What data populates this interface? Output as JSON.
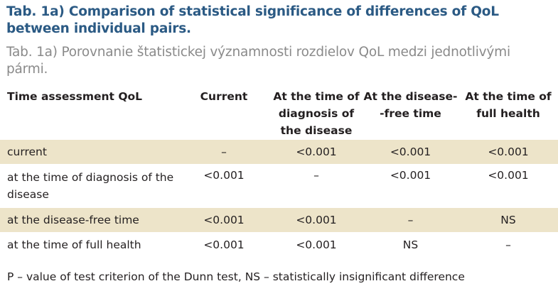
{
  "title_en": "Tab. 1a) Comparison of statistical significance of differences of QoL between individual pairs.",
  "title_sk": "Tab. 1a) Porovnanie štatistickej významnosti rozdielov QoL medzi jednotlivými pármi.",
  "table": {
    "headers": [
      "Time assessment QoL",
      "Current",
      "At the time of diagnosis of the disease",
      "At the disease--free time",
      "At the time of full health"
    ],
    "rows": [
      {
        "label": "current",
        "values": [
          "–",
          "<0.001",
          "<0.001",
          "<0.001"
        ]
      },
      {
        "label": "at the time of diagnosis of the disease",
        "values": [
          "<0.001",
          "–",
          "<0.001",
          "<0.001"
        ]
      },
      {
        "label": "at the disease-free time",
        "values": [
          "<0.001",
          "<0.001",
          "–",
          "NS"
        ]
      },
      {
        "label": "at the time of full health",
        "values": [
          "<0.001",
          "<0.001",
          "NS",
          "–"
        ]
      }
    ]
  },
  "footnote": "P – value of test criterion of the Dunn test, NS – statistically insignificant difference",
  "colors": {
    "title": "#2b5a84",
    "subtitle": "#8a8a8a",
    "row_shade": "#ede4c9"
  }
}
